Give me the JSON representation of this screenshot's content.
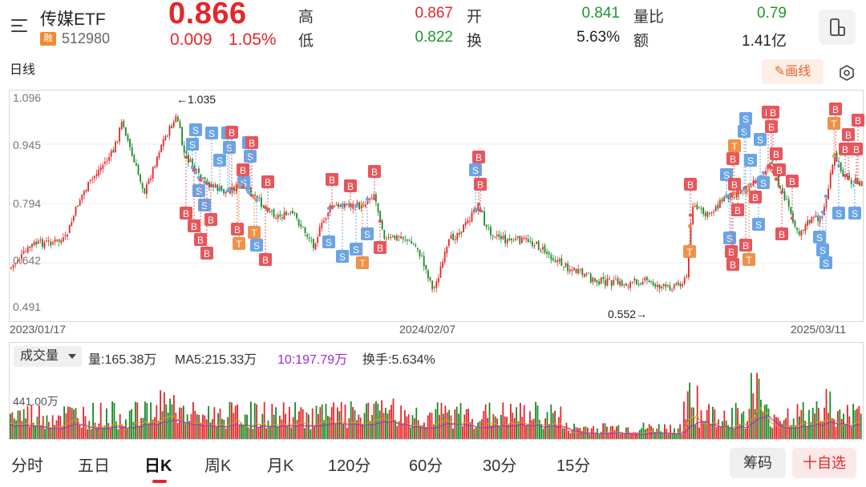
{
  "header": {
    "title": "传媒ETF",
    "badge": "融",
    "code": "512980",
    "price": "0.866",
    "change": "0.009",
    "change_pct": "1.05%"
  },
  "quote": {
    "high_label": "高",
    "high_value": "0.867",
    "low_label": "低",
    "low_value": "0.822",
    "open_label": "开",
    "open_value": "0.841",
    "turnover_label": "换",
    "turnover_value": "5.63%",
    "volratio_label": "量比",
    "volratio_value": "0.79",
    "amount_label": "额",
    "amount_value": "1.41亿"
  },
  "toolbar": {
    "chart_label": "日线",
    "draw_label": "画线"
  },
  "chart": {
    "y_ticks": [
      "1.096",
      "0.945",
      "0.794",
      "0.642",
      "0.491"
    ],
    "x_ticks": [
      "2023/01/17",
      "2024/02/07",
      "2025/03/11"
    ],
    "high_marker": "←1.035",
    "low_marker": "0.552→",
    "colors": {
      "up": "#e5262a",
      "down": "#1a8a24",
      "buy": "#e8555b",
      "sell": "#6aa4e6",
      "t": "#f0914a"
    }
  },
  "volume": {
    "selector": "成交量",
    "vol": "量:165.38万",
    "ma5": "MA5:215.33万",
    "ma10": "10:197.79万",
    "turnover": "换手:5.634%",
    "y_tick": "441.00万"
  },
  "periods": [
    {
      "label": "分时"
    },
    {
      "label": "五日"
    },
    {
      "label": "日K"
    },
    {
      "label": "周K"
    },
    {
      "label": "月K"
    },
    {
      "label": "120分"
    },
    {
      "label": "60分"
    },
    {
      "label": "30分"
    },
    {
      "label": "15分"
    }
  ],
  "actions": {
    "chips": "筹码",
    "add_fav": "十自选"
  },
  "trade_marks": [
    {
      "t": "S",
      "x": 244,
      "y": 162
    },
    {
      "t": "S",
      "x": 240,
      "y": 180
    },
    {
      "t": "S",
      "x": 264,
      "y": 166
    },
    {
      "t": "S",
      "x": 284,
      "y": 166
    },
    {
      "t": "S",
      "x": 286,
      "y": 184
    },
    {
      "t": "S",
      "x": 274,
      "y": 200
    },
    {
      "t": "S",
      "x": 310,
      "y": 178
    },
    {
      "t": "S",
      "x": 312,
      "y": 195
    },
    {
      "t": "S",
      "x": 304,
      "y": 228
    },
    {
      "t": "S",
      "x": 248,
      "y": 238
    },
    {
      "t": "S",
      "x": 255,
      "y": 256
    },
    {
      "t": "S",
      "x": 320,
      "y": 306
    },
    {
      "t": "S",
      "x": 410,
      "y": 302
    },
    {
      "t": "S",
      "x": 427,
      "y": 320
    },
    {
      "t": "S",
      "x": 444,
      "y": 311
    },
    {
      "t": "S",
      "x": 458,
      "y": 292
    },
    {
      "t": "S",
      "x": 593,
      "y": 212
    },
    {
      "t": "S",
      "x": 906,
      "y": 218
    },
    {
      "t": "S",
      "x": 910,
      "y": 297
    },
    {
      "t": "S",
      "x": 928,
      "y": 164
    },
    {
      "t": "S",
      "x": 930,
      "y": 148
    },
    {
      "t": "S",
      "x": 936,
      "y": 200
    },
    {
      "t": "S",
      "x": 948,
      "y": 174
    },
    {
      "t": "S",
      "x": 952,
      "y": 228
    },
    {
      "t": "S",
      "x": 946,
      "y": 280
    },
    {
      "t": "S",
      "x": 1022,
      "y": 296
    },
    {
      "t": "S",
      "x": 1026,
      "y": 312
    },
    {
      "t": "S",
      "x": 1030,
      "y": 328
    },
    {
      "t": "S",
      "x": 1046,
      "y": 266
    },
    {
      "t": "S",
      "x": 1066,
      "y": 266
    },
    {
      "t": "B",
      "x": 289,
      "y": 165
    },
    {
      "t": "B",
      "x": 314,
      "y": 178
    },
    {
      "t": "B",
      "x": 303,
      "y": 212
    },
    {
      "t": "B",
      "x": 334,
      "y": 227
    },
    {
      "t": "B",
      "x": 232,
      "y": 266
    },
    {
      "t": "B",
      "x": 242,
      "y": 282
    },
    {
      "t": "B",
      "x": 250,
      "y": 299
    },
    {
      "t": "B",
      "x": 258,
      "y": 316
    },
    {
      "t": "B",
      "x": 263,
      "y": 274
    },
    {
      "t": "B",
      "x": 296,
      "y": 286
    },
    {
      "t": "B",
      "x": 331,
      "y": 324
    },
    {
      "t": "B",
      "x": 414,
      "y": 224
    },
    {
      "t": "B",
      "x": 437,
      "y": 232
    },
    {
      "t": "B",
      "x": 467,
      "y": 214
    },
    {
      "t": "B",
      "x": 474,
      "y": 309
    },
    {
      "t": "B",
      "x": 597,
      "y": 196
    },
    {
      "t": "B",
      "x": 599,
      "y": 230
    },
    {
      "t": "B",
      "x": 861,
      "y": 230
    },
    {
      "t": "B",
      "x": 914,
      "y": 198
    },
    {
      "t": "B",
      "x": 916,
      "y": 230
    },
    {
      "t": "B",
      "x": 920,
      "y": 262
    },
    {
      "t": "B",
      "x": 912,
      "y": 314
    },
    {
      "t": "B",
      "x": 914,
      "y": 330
    },
    {
      "t": "B",
      "x": 930,
      "y": 306
    },
    {
      "t": "B",
      "x": 942,
      "y": 246
    },
    {
      "t": "B",
      "x": 958,
      "y": 140
    },
    {
      "t": "B",
      "x": 962,
      "y": 158
    },
    {
      "t": "B",
      "x": 964,
      "y": 140
    },
    {
      "t": "B",
      "x": 968,
      "y": 192
    },
    {
      "t": "B",
      "x": 972,
      "y": 212
    },
    {
      "t": "B",
      "x": 988,
      "y": 226
    },
    {
      "t": "B",
      "x": 975,
      "y": 292
    },
    {
      "t": "B",
      "x": 1042,
      "y": 136
    },
    {
      "t": "B",
      "x": 1058,
      "y": 168
    },
    {
      "t": "B",
      "x": 1054,
      "y": 186
    },
    {
      "t": "B",
      "x": 1070,
      "y": 150
    },
    {
      "t": "B",
      "x": 1068,
      "y": 186
    },
    {
      "t": "T",
      "x": 298,
      "y": 304
    },
    {
      "t": "T",
      "x": 317,
      "y": 290
    },
    {
      "t": "T",
      "x": 452,
      "y": 328
    },
    {
      "t": "T",
      "x": 934,
      "y": 324
    },
    {
      "t": "T",
      "x": 916,
      "y": 182
    },
    {
      "t": "T",
      "x": 860,
      "y": 314
    },
    {
      "t": "T",
      "x": 1040,
      "y": 154
    }
  ]
}
